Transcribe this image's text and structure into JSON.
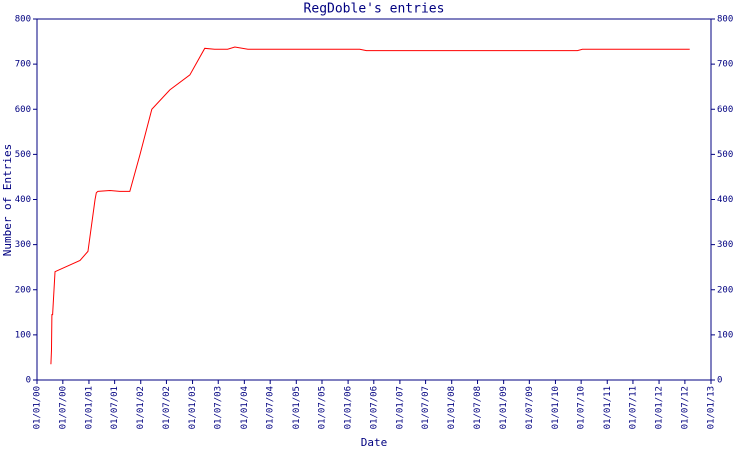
{
  "chart_data": {
    "type": "line",
    "title": "RegDoble's entries",
    "x_label": "Date",
    "y_label": "Number of Entries",
    "color": "#ff0000",
    "axis_color": "#000080",
    "x": [
      "2000-04-08",
      "2000-04-12",
      "2000-04-15",
      "2000-04-20",
      "2000-05-07",
      "2000-10-30",
      "2000-12-25",
      "2001-02-13",
      "2001-02-22",
      "2001-03-05",
      "2001-05-29",
      "2001-08-06",
      "2001-10-16",
      "2001-12-27",
      "2002-03-20",
      "2002-07-25",
      "2002-12-13",
      "2003-03-28",
      "2003-06-05",
      "2003-09-05",
      "2003-10-26",
      "2004-01-26",
      "2006-03-24",
      "2006-05-10",
      "2010-06-05",
      "2010-07-10",
      "2012-08-04"
    ],
    "values": [
      35,
      66,
      145,
      145,
      240,
      265,
      285,
      400,
      415,
      418,
      420,
      418,
      418,
      500,
      600,
      643,
      676,
      735,
      733,
      733,
      738,
      733,
      733,
      730,
      730,
      733,
      733
    ],
    "xlim": [
      "2000-01-01",
      "2013-01-01"
    ],
    "xticks": [
      {
        "value": "2000-01-01",
        "label": "01/01/00"
      },
      {
        "value": "2000-07-01",
        "label": "01/07/00"
      },
      {
        "value": "2001-01-01",
        "label": "01/01/01"
      },
      {
        "value": "2001-07-01",
        "label": "01/07/01"
      },
      {
        "value": "2002-01-01",
        "label": "01/01/02"
      },
      {
        "value": "2002-07-01",
        "label": "01/07/02"
      },
      {
        "value": "2003-01-01",
        "label": "01/01/03"
      },
      {
        "value": "2003-07-01",
        "label": "01/07/03"
      },
      {
        "value": "2004-01-01",
        "label": "01/01/04"
      },
      {
        "value": "2004-07-01",
        "label": "01/07/04"
      },
      {
        "value": "2005-01-01",
        "label": "01/01/05"
      },
      {
        "value": "2005-07-01",
        "label": "01/07/05"
      },
      {
        "value": "2006-01-01",
        "label": "01/01/06"
      },
      {
        "value": "2006-07-01",
        "label": "01/07/06"
      },
      {
        "value": "2007-01-01",
        "label": "01/01/07"
      },
      {
        "value": "2007-07-01",
        "label": "01/07/07"
      },
      {
        "value": "2008-01-01",
        "label": "01/01/08"
      },
      {
        "value": "2008-07-01",
        "label": "01/07/08"
      },
      {
        "value": "2009-01-01",
        "label": "01/01/09"
      },
      {
        "value": "2009-07-01",
        "label": "01/07/09"
      },
      {
        "value": "2010-01-01",
        "label": "01/01/10"
      },
      {
        "value": "2010-07-01",
        "label": "01/07/10"
      },
      {
        "value": "2011-01-01",
        "label": "01/01/11"
      },
      {
        "value": "2011-07-01",
        "label": "01/07/11"
      },
      {
        "value": "2012-01-01",
        "label": "01/01/12"
      },
      {
        "value": "2012-07-01",
        "label": "01/07/12"
      },
      {
        "value": "2013-01-01",
        "label": "01/01/13"
      }
    ],
    "ylim": [
      0,
      800
    ],
    "yticks": [
      0,
      100,
      200,
      300,
      400,
      500,
      600,
      700,
      800
    ],
    "grid": false
  }
}
